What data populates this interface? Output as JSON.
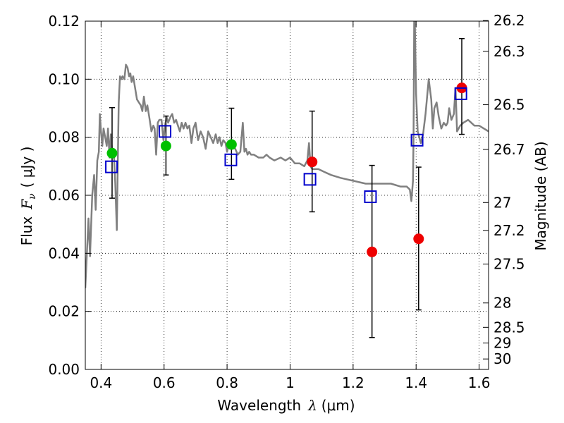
{
  "chart_data": {
    "type": "scatter",
    "xlabel_text": "Wavelength",
    "xlabel_math": "λ",
    "xlabel_units": "(μm)",
    "ylabel_text": "Flux",
    "ylabel_math": "F",
    "ylabel_sub": "ν",
    "ylabel_units": "( μJy )",
    "y2label": "Magnitude (AB)",
    "xlim": [
      0.35,
      1.63
    ],
    "ylim": [
      0.0,
      0.12
    ],
    "grid": true,
    "x_ticks": [
      0.4,
      0.6,
      0.8,
      1.0,
      1.2,
      1.4,
      1.6
    ],
    "x_tick_labels": [
      "0.4",
      "0.6",
      "0.8",
      "1",
      "1.2",
      "1.4",
      "1.6"
    ],
    "y_ticks": [
      0.0,
      0.02,
      0.04,
      0.06,
      0.08,
      0.1,
      0.12
    ],
    "y_tick_labels": [
      "0.00",
      "0.02",
      "0.04",
      "0.06",
      "0.08",
      "0.10",
      "0.12"
    ],
    "mag_ticks": [
      {
        "flux": 0.1202,
        "label": "26.2"
      },
      {
        "flux": 0.1096,
        "label": "26.3"
      },
      {
        "flux": 0.0912,
        "label": "26.5"
      },
      {
        "flux": 0.0758,
        "label": "26.7"
      },
      {
        "flux": 0.0575,
        "label": "27"
      },
      {
        "flux": 0.0479,
        "label": "27.2"
      },
      {
        "flux": 0.0363,
        "label": "27.5"
      },
      {
        "flux": 0.0229,
        "label": "28"
      },
      {
        "flux": 0.0145,
        "label": "28.5"
      },
      {
        "flux": 0.0091,
        "label": "29"
      },
      {
        "flux": 0.0036,
        "label": "30"
      }
    ],
    "colors": {
      "sed": "#808080",
      "green": "#00c000",
      "red": "#ee0000",
      "model": "#0000cc",
      "error": "#000000"
    },
    "series": [
      {
        "name": "SED model",
        "type": "line",
        "x": [
          0.35,
          0.36,
          0.365,
          0.372,
          0.378,
          0.383,
          0.388,
          0.393,
          0.396,
          0.4,
          0.404,
          0.408,
          0.413,
          0.418,
          0.422,
          0.427,
          0.431,
          0.436,
          0.44,
          0.445,
          0.45,
          0.453,
          0.456,
          0.46,
          0.464,
          0.468,
          0.474,
          0.479,
          0.484,
          0.489,
          0.493,
          0.497,
          0.502,
          0.508,
          0.514,
          0.52,
          0.526,
          0.531,
          0.536,
          0.542,
          0.547,
          0.553,
          0.56,
          0.566,
          0.57,
          0.575,
          0.58,
          0.585,
          0.592,
          0.598,
          0.603,
          0.608,
          0.613,
          0.62,
          0.626,
          0.632,
          0.638,
          0.644,
          0.65,
          0.656,
          0.662,
          0.668,
          0.674,
          0.68,
          0.687,
          0.693,
          0.7,
          0.708,
          0.716,
          0.724,
          0.732,
          0.74,
          0.748,
          0.756,
          0.764,
          0.77,
          0.776,
          0.782,
          0.788,
          0.795,
          0.8,
          0.806,
          0.812,
          0.818,
          0.826,
          0.834,
          0.842,
          0.85,
          0.855,
          0.86,
          0.865,
          0.87,
          0.876,
          0.885,
          0.9,
          0.915,
          0.925,
          0.935,
          0.95,
          0.97,
          0.985,
          1.0,
          1.015,
          1.03,
          1.045,
          1.055,
          1.06,
          1.065,
          1.07,
          1.078,
          1.09,
          1.11,
          1.13,
          1.16,
          1.2,
          1.24,
          1.28,
          1.32,
          1.35,
          1.37,
          1.38,
          1.385,
          1.39,
          1.392,
          1.394,
          1.396,
          1.4,
          1.405,
          1.41,
          1.415,
          1.422,
          1.43,
          1.44,
          1.448,
          1.453,
          1.458,
          1.465,
          1.472,
          1.48,
          1.488,
          1.495,
          1.5,
          1.505,
          1.512,
          1.52,
          1.525,
          1.53,
          1.54,
          1.55,
          1.565,
          1.575,
          1.585,
          1.6,
          1.615,
          1.63
        ],
        "y": [
          0.028,
          0.052,
          0.039,
          0.06,
          0.067,
          0.055,
          0.072,
          0.075,
          0.088,
          0.082,
          0.077,
          0.083,
          0.08,
          0.077,
          0.083,
          0.073,
          0.081,
          0.074,
          0.076,
          0.064,
          0.048,
          0.07,
          0.092,
          0.101,
          0.1,
          0.101,
          0.1,
          0.105,
          0.104,
          0.101,
          0.102,
          0.099,
          0.101,
          0.097,
          0.093,
          0.092,
          0.091,
          0.089,
          0.094,
          0.089,
          0.091,
          0.087,
          0.082,
          0.084,
          0.083,
          0.074,
          0.085,
          0.086,
          0.086,
          0.079,
          0.084,
          0.087,
          0.085,
          0.087,
          0.088,
          0.085,
          0.086,
          0.084,
          0.082,
          0.085,
          0.083,
          0.085,
          0.083,
          0.084,
          0.078,
          0.083,
          0.085,
          0.079,
          0.082,
          0.08,
          0.076,
          0.082,
          0.08,
          0.078,
          0.081,
          0.078,
          0.08,
          0.077,
          0.079,
          0.078,
          0.075,
          0.078,
          0.076,
          0.077,
          0.076,
          0.074,
          0.075,
          0.085,
          0.075,
          0.076,
          0.074,
          0.075,
          0.074,
          0.074,
          0.073,
          0.073,
          0.074,
          0.073,
          0.072,
          0.073,
          0.072,
          0.073,
          0.071,
          0.071,
          0.07,
          0.072,
          0.078,
          0.07,
          0.069,
          0.069,
          0.069,
          0.068,
          0.067,
          0.066,
          0.065,
          0.064,
          0.064,
          0.064,
          0.063,
          0.063,
          0.062,
          0.058,
          0.065,
          0.08,
          0.12,
          0.12,
          0.095,
          0.082,
          0.08,
          0.078,
          0.081,
          0.088,
          0.1,
          0.093,
          0.083,
          0.09,
          0.092,
          0.087,
          0.083,
          0.085,
          0.084,
          0.085,
          0.09,
          0.086,
          0.088,
          0.097,
          0.082,
          0.084,
          0.085,
          0.086,
          0.085,
          0.084,
          0.084,
          0.083,
          0.082
        ]
      },
      {
        "name": "Observed (green)",
        "type": "scatter",
        "marker": "circle",
        "color": "green",
        "points": [
          {
            "x": 0.435,
            "y": 0.0745
          },
          {
            "x": 0.606,
            "y": 0.077
          },
          {
            "x": 0.814,
            "y": 0.0775
          }
        ]
      },
      {
        "name": "Observed (red)",
        "type": "scatter",
        "marker": "circle",
        "color": "red",
        "points": [
          {
            "x": 1.07,
            "y": 0.0715
          },
          {
            "x": 1.26,
            "y": 0.0405
          },
          {
            "x": 1.408,
            "y": 0.045
          },
          {
            "x": 1.545,
            "y": 0.097
          }
        ]
      },
      {
        "name": "Model photometry",
        "type": "scatter",
        "marker": "open-square",
        "color": "model",
        "points": [
          {
            "x": 0.433,
            "y": 0.0698
          },
          {
            "x": 0.603,
            "y": 0.082
          },
          {
            "x": 0.812,
            "y": 0.0722
          },
          {
            "x": 1.063,
            "y": 0.0655
          },
          {
            "x": 1.255,
            "y": 0.0595
          },
          {
            "x": 1.403,
            "y": 0.079
          },
          {
            "x": 1.542,
            "y": 0.095
          }
        ]
      },
      {
        "name": "Error bars",
        "type": "errorbar",
        "color": "error",
        "bars": [
          {
            "x": 0.435,
            "y_low": 0.059,
            "y_high": 0.0902
          },
          {
            "x": 0.606,
            "y_low": 0.067,
            "y_high": 0.0873
          },
          {
            "x": 0.814,
            "y_low": 0.0655,
            "y_high": 0.09
          },
          {
            "x": 1.07,
            "y_low": 0.0543,
            "y_high": 0.089
          },
          {
            "x": 1.26,
            "y_low": 0.011,
            "y_high": 0.0703
          },
          {
            "x": 1.408,
            "y_low": 0.0205,
            "y_high": 0.0697
          },
          {
            "x": 1.545,
            "y_low": 0.081,
            "y_high": 0.114
          }
        ]
      }
    ]
  }
}
